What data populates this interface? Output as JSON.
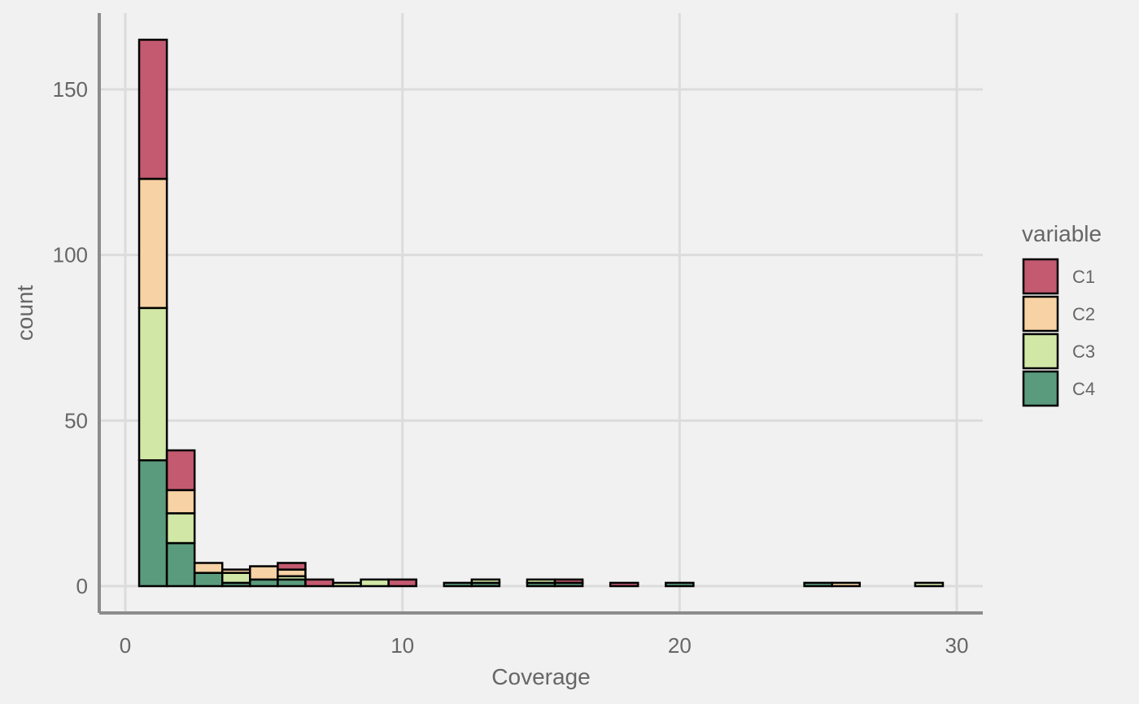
{
  "chart_data": {
    "type": "bar",
    "subtype": "stacked-histogram",
    "title": "",
    "xlabel": "Coverage",
    "ylabel": "count",
    "xlim": [
      -1,
      31
    ],
    "ylim": [
      -8,
      173
    ],
    "x_ticks": [
      0,
      10,
      20,
      30
    ],
    "y_ticks": [
      0,
      50,
      100,
      150
    ],
    "grid": true,
    "legend_title": "variable",
    "legend_position": "right",
    "bin_width": 1,
    "bins": [
      1,
      2,
      3,
      4,
      5,
      6,
      7,
      8,
      9,
      10,
      11,
      12,
      13,
      14,
      15,
      16,
      17,
      18,
      19,
      20,
      21,
      22,
      23,
      24,
      25,
      26,
      27,
      28,
      29
    ],
    "series": [
      {
        "name": "C4",
        "color": "#5b9b7d",
        "values": [
          38,
          13,
          4,
          1,
          2,
          2,
          0,
          0,
          0,
          0,
          0,
          1,
          1,
          0,
          1,
          1,
          0,
          0,
          0,
          1,
          0,
          0,
          0,
          0,
          1,
          0,
          0,
          0,
          0
        ]
      },
      {
        "name": "C3",
        "color": "#d1e7a6",
        "values": [
          46,
          9,
          0,
          3,
          0,
          1,
          0,
          1,
          2,
          0,
          0,
          0,
          1,
          0,
          1,
          0,
          0,
          0,
          0,
          0,
          0,
          0,
          0,
          0,
          0,
          0,
          0,
          0,
          1
        ]
      },
      {
        "name": "C2",
        "color": "#f7d2a4",
        "values": [
          39,
          7,
          3,
          1,
          4,
          2,
          0,
          0,
          0,
          0,
          0,
          0,
          0,
          0,
          0,
          0,
          0,
          0,
          0,
          0,
          0,
          0,
          0,
          0,
          0,
          1,
          0,
          0,
          0
        ]
      },
      {
        "name": "C1",
        "color": "#c35a70",
        "values": [
          42,
          12,
          0,
          0,
          0,
          2,
          2,
          0,
          0,
          2,
          0,
          0,
          0,
          0,
          0,
          1,
          0,
          1,
          0,
          0,
          0,
          0,
          0,
          0,
          0,
          0,
          0,
          0,
          0
        ]
      }
    ],
    "legend_order": [
      "C1",
      "C2",
      "C3",
      "C4"
    ]
  }
}
